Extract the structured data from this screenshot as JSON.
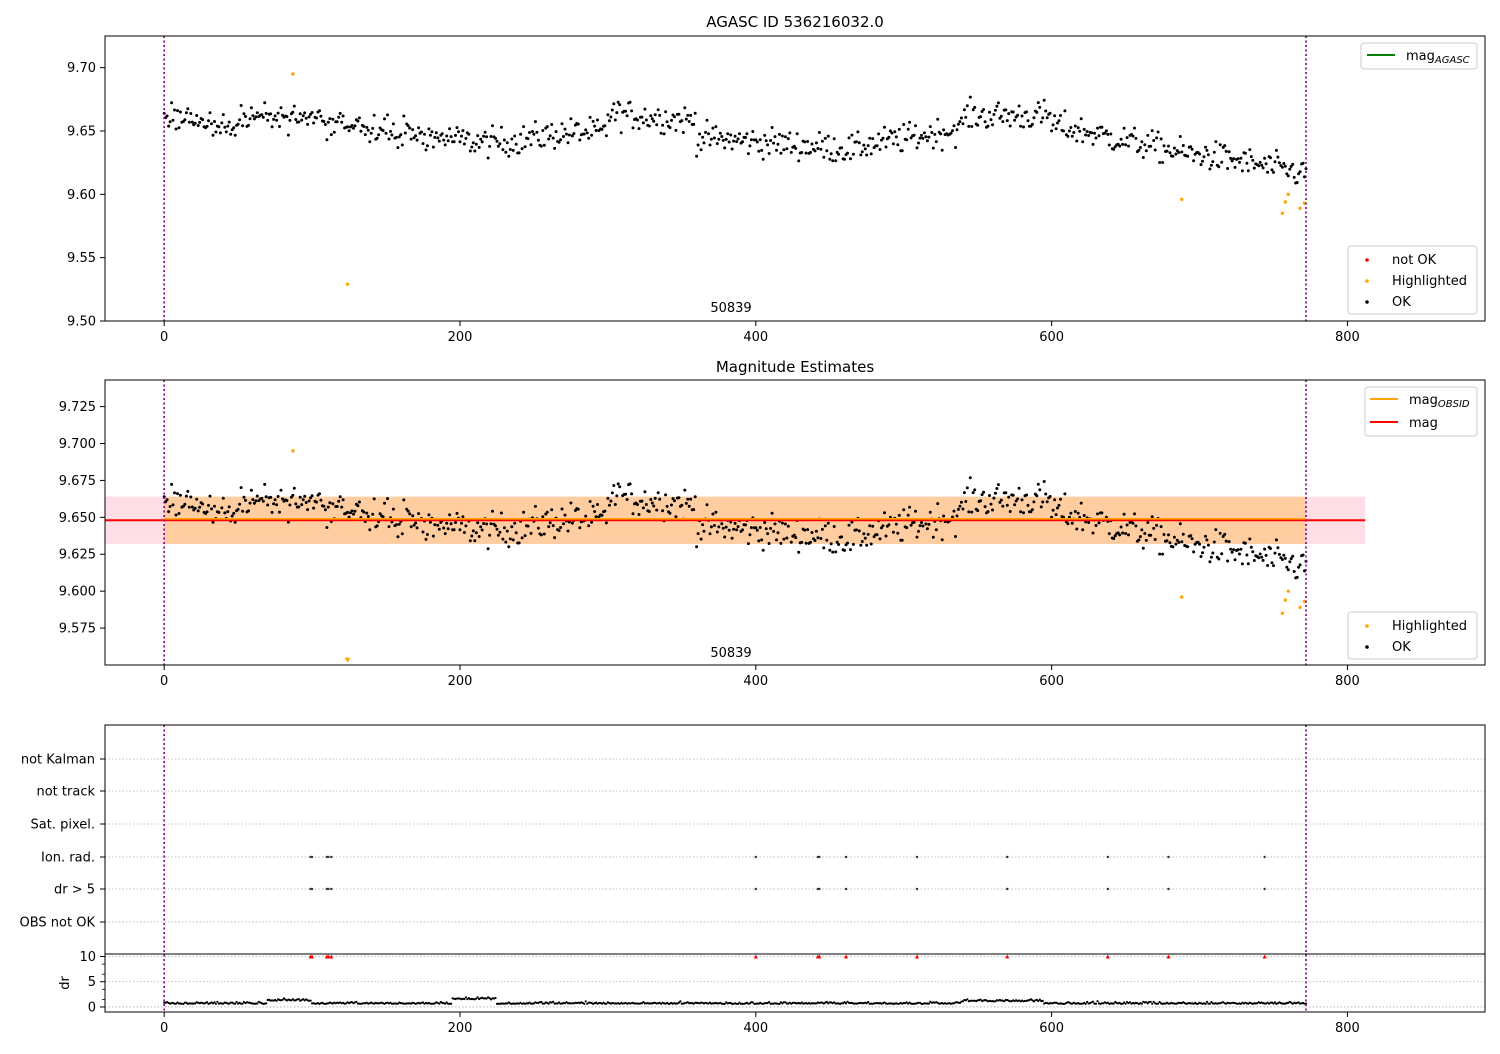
{
  "figure": {
    "title_top": "AGASC ID 536216032.0",
    "title_mid": "Magnitude Estimates"
  },
  "chart_data": [
    {
      "type": "scatter",
      "title": "AGASC ID 536216032.0",
      "xlim": [
        -40,
        893
      ],
      "ylim": [
        9.5,
        9.725
      ],
      "xticks": [
        0,
        200,
        400,
        600,
        800
      ],
      "yticks": [
        9.5,
        9.55,
        9.6,
        9.65,
        9.7
      ],
      "yticklabels": [
        "9.50",
        "9.55",
        "9.60",
        "9.65",
        "9.70"
      ],
      "vlines": [
        0,
        772
      ],
      "annotation": "50839",
      "legend_lines": [
        {
          "label": "mag",
          "sub": "AGASC",
          "color": "#008000"
        }
      ],
      "legend_points": [
        {
          "label": "not OK",
          "color": "#ff0000"
        },
        {
          "label": "Highlighted",
          "color": "#ffa500"
        },
        {
          "label": "OK",
          "color": "#000000"
        }
      ],
      "highlighted": [
        [
          87,
          9.695
        ],
        [
          124,
          9.529
        ],
        [
          688,
          9.596
        ],
        [
          756,
          9.585
        ],
        [
          758,
          9.594
        ],
        [
          760,
          9.6
        ],
        [
          768,
          9.589
        ],
        [
          771,
          9.593
        ]
      ],
      "ok_series_note": "≈770 black points, x 0–772, mag ≈9.605–9.69 with downward trend near the end"
    },
    {
      "type": "scatter",
      "title": "Magnitude Estimates",
      "xlim": [
        -40,
        893
      ],
      "ylim": [
        9.55,
        9.743
      ],
      "xticks": [
        0,
        200,
        400,
        600,
        800
      ],
      "yticks": [
        9.575,
        9.6,
        9.625,
        9.65,
        9.675,
        9.7,
        9.725
      ],
      "yticklabels": [
        "9.575",
        "9.600",
        "9.625",
        "9.650",
        "9.675",
        "9.700",
        "9.725"
      ],
      "vlines": [
        0,
        772
      ],
      "annotation": "50839",
      "mag": 9.648,
      "mag_band": [
        9.632,
        9.664
      ],
      "mag_band_x": [
        -40,
        812
      ],
      "obsid_band_x": [
        0,
        772
      ],
      "legend_lines": [
        {
          "label": "mag",
          "sub": "OBSID",
          "color": "#ffa500"
        },
        {
          "label": "mag",
          "sub": "",
          "color": "#ff0000"
        }
      ],
      "legend_points": [
        {
          "label": "Highlighted",
          "color": "#ffa500"
        },
        {
          "label": "OK",
          "color": "#000000"
        }
      ],
      "highlighted": [
        [
          87,
          9.695
        ],
        [
          688,
          9.596
        ],
        [
          756,
          9.585
        ],
        [
          758,
          9.594
        ],
        [
          760,
          9.6
        ],
        [
          768,
          9.589
        ],
        [
          771,
          9.593
        ]
      ],
      "offscale_marker": [
        124,
        9.553
      ]
    },
    {
      "type": "scatter",
      "xlim": [
        -40,
        893
      ],
      "xticks": [
        0,
        200,
        400,
        600,
        800
      ],
      "vlines": [
        0,
        772
      ],
      "flag_rows": [
        "not Kalman",
        "not track",
        "Sat. pixel.",
        "Ion. rad.",
        "dr > 5",
        "OBS not OK"
      ],
      "ion_rad_x": [
        99,
        100,
        110,
        111,
        113,
        400,
        442,
        443,
        461,
        509,
        570,
        638,
        679,
        744
      ],
      "dr5_x": [
        99,
        100,
        110,
        111,
        113,
        400,
        442,
        443,
        461,
        509,
        570,
        638,
        679,
        744
      ],
      "dr_ylabel": "dr",
      "dr_yticks": [
        0,
        5,
        10
      ],
      "dr_ylim": [
        -1,
        10.5
      ],
      "dr_clipped_x": [
        99,
        100,
        110,
        111,
        113,
        400,
        442,
        443,
        461,
        509,
        570,
        638,
        679,
        744
      ]
    }
  ]
}
